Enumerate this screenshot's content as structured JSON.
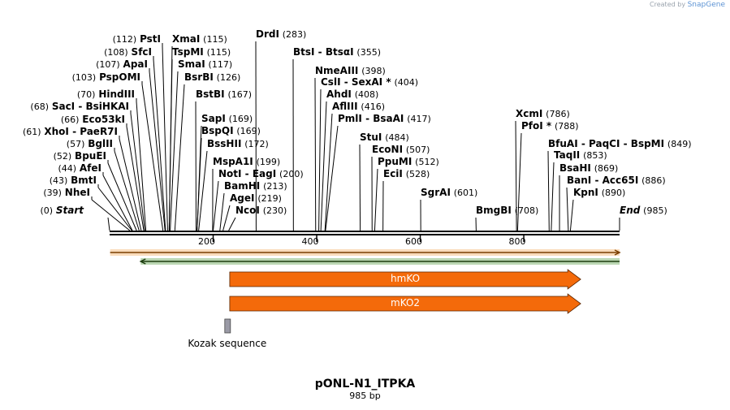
{
  "brand": {
    "prefix": "Created by",
    "name": "SnapGene"
  },
  "plasmid": {
    "name": "pONL-N1_ITPKA",
    "length": "985 bp",
    "total_bp": 985
  },
  "sites": [
    {
      "names": [
        "Start"
      ],
      "pos": 0,
      "terminal": true
    },
    {
      "names": [
        "NheI"
      ],
      "pos": 39
    },
    {
      "names": [
        "BmtI"
      ],
      "pos": 43
    },
    {
      "names": [
        "AfeI"
      ],
      "pos": 44
    },
    {
      "names": [
        "BpuEI"
      ],
      "pos": 52
    },
    {
      "names": [
        "BglII"
      ],
      "pos": 57
    },
    {
      "names": [
        "XhoI",
        "PaeR7I"
      ],
      "pos": 61
    },
    {
      "names": [
        "Eco53kI"
      ],
      "pos": 66
    },
    {
      "names": [
        "SacI",
        "BsiHKAI"
      ],
      "pos": 68
    },
    {
      "names": [
        "HindIII"
      ],
      "pos": 70
    },
    {
      "names": [
        "PspOMI"
      ],
      "pos": 103
    },
    {
      "names": [
        "ApaI"
      ],
      "pos": 107
    },
    {
      "names": [
        "SfcI"
      ],
      "pos": 108
    },
    {
      "names": [
        "PstI"
      ],
      "pos": 112
    },
    {
      "names": [
        "XmaI"
      ],
      "pos": 115
    },
    {
      "names": [
        "TspMI"
      ],
      "pos": 115
    },
    {
      "names": [
        "SmaI"
      ],
      "pos": 117
    },
    {
      "names": [
        "BsrBI"
      ],
      "pos": 126
    },
    {
      "names": [
        "BstBI"
      ],
      "pos": 167
    },
    {
      "names": [
        "SapI"
      ],
      "pos": 169
    },
    {
      "names": [
        "BspQI"
      ],
      "pos": 169
    },
    {
      "names": [
        "BssHII"
      ],
      "pos": 172
    },
    {
      "names": [
        "MspA1I"
      ],
      "pos": 199
    },
    {
      "names": [
        "NotI",
        "EagI"
      ],
      "pos": 200
    },
    {
      "names": [
        "BamHI"
      ],
      "pos": 213
    },
    {
      "names": [
        "AgeI"
      ],
      "pos": 219
    },
    {
      "names": [
        "NcoI"
      ],
      "pos": 230
    },
    {
      "names": [
        "DrdI"
      ],
      "pos": 283
    },
    {
      "names": [
        "BtsI",
        "BtsαI"
      ],
      "pos": 355
    },
    {
      "names": [
        "NmeAIII"
      ],
      "pos": 398
    },
    {
      "names": [
        "CslI",
        "SexAI *"
      ],
      "pos": 404
    },
    {
      "names": [
        "AhdI"
      ],
      "pos": 408
    },
    {
      "names": [
        "AflIII"
      ],
      "pos": 416
    },
    {
      "names": [
        "PmlI",
        "BsaAI"
      ],
      "pos": 417
    },
    {
      "names": [
        "StuI"
      ],
      "pos": 484
    },
    {
      "names": [
        "EcoNI"
      ],
      "pos": 507
    },
    {
      "names": [
        "PpuMI"
      ],
      "pos": 512
    },
    {
      "names": [
        "EciI"
      ],
      "pos": 528
    },
    {
      "names": [
        "SgrAI"
      ],
      "pos": 601
    },
    {
      "names": [
        "BmgBI"
      ],
      "pos": 708
    },
    {
      "names": [
        "XcmI"
      ],
      "pos": 786
    },
    {
      "names": [
        "PfoI *"
      ],
      "pos": 788
    },
    {
      "names": [
        "BfuAI",
        "PaqCI",
        "BspMI"
      ],
      "pos": 849
    },
    {
      "names": [
        "TaqII"
      ],
      "pos": 853
    },
    {
      "names": [
        "BsaHI"
      ],
      "pos": 869
    },
    {
      "names": [
        "BanI",
        "Acc65I"
      ],
      "pos": 886
    },
    {
      "names": [
        "KpnI"
      ],
      "pos": 890
    },
    {
      "names": [
        "End"
      ],
      "pos": 985,
      "terminal": true
    }
  ],
  "axis": {
    "ticks": [
      200,
      400,
      600,
      800
    ]
  },
  "orfs": [
    {
      "name": "orf-forward",
      "start": 1,
      "end": 985,
      "direction": "forward",
      "color": "#f29b3f"
    },
    {
      "name": "orf-reverse",
      "start": 60,
      "end": 985,
      "direction": "reverse",
      "color": "#3d8c25"
    }
  ],
  "features": [
    {
      "name": "hmKO",
      "start": 232,
      "end": 888,
      "color": "#f46a0a"
    },
    {
      "name": "mKO2",
      "start": 232,
      "end": 888,
      "color": "#f46a0a"
    }
  ],
  "kozak": {
    "name": "Kozak sequence",
    "start": 224,
    "end": 233,
    "color": "#9a9aa6"
  }
}
